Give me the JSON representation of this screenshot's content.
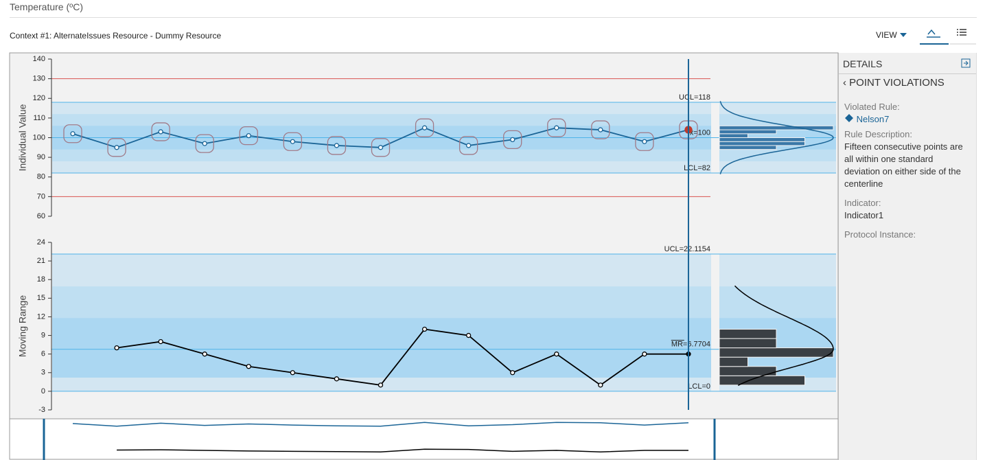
{
  "header": {
    "title": "Temperature (ºC)",
    "context": "Context #1: AlternateIssues Resource - Dummy Resource"
  },
  "toolbar": {
    "view": "VIEW"
  },
  "details": {
    "title": "DETAILS",
    "section": "POINT VIOLATIONS",
    "violated_rule_label": "Violated Rule:",
    "violated_rule": "Nelson7",
    "rule_description_label": "Rule Description:",
    "rule_description": "Fifteen consecutive points are all within one standard deviation on either side of the centerline",
    "indicator_label": "Indicator:",
    "indicator": "Indicator1",
    "protocol_instance_label": "Protocol Instance:"
  },
  "chart_data": [
    {
      "type": "line",
      "y_label": "Individual Value",
      "color": "#1a6496",
      "hist_color": "#3a78a8",
      "values": [
        102,
        95,
        103,
        97,
        101,
        98,
        96,
        95,
        105,
        96,
        99,
        105,
        104,
        98,
        104
      ],
      "ylim": [
        60,
        140
      ],
      "yticks": [
        60,
        70,
        80,
        90,
        100,
        110,
        120,
        130,
        140
      ],
      "control_limits": [
        {
          "value": 118,
          "label": "UCL=118"
        },
        {
          "value": 100,
          "label": "x̄=100"
        },
        {
          "value": 82,
          "label": "LCL=82"
        }
      ],
      "spec_limits": [
        70,
        130
      ],
      "zones": [
        [
          82,
          118
        ],
        [
          88,
          112
        ],
        [
          94,
          106
        ]
      ],
      "highlight_points": true,
      "violation_point": 14,
      "histogram": {
        "bins": [
          94,
          96,
          98,
          100,
          102,
          104,
          106
        ],
        "counts": [
          2,
          3,
          3,
          1,
          2,
          4
        ]
      }
    },
    {
      "type": "line",
      "y_label": "Moving Range",
      "color": "#000000",
      "hist_color": "#3a3f44",
      "values": [
        null,
        7,
        8,
        6,
        4,
        3,
        2,
        1,
        10,
        9,
        3,
        6,
        1,
        6,
        6
      ],
      "ylim": [
        -3,
        24
      ],
      "yticks": [
        -3,
        0,
        3,
        6,
        9,
        12,
        15,
        18,
        21,
        24
      ],
      "control_limits": [
        {
          "value": 22.1154,
          "label": "UCL=22.1154"
        },
        {
          "value": 6.7704,
          "label": "MR=6.7704"
        },
        {
          "value": 0,
          "label": "LCL=0"
        }
      ],
      "zones": [
        [
          0,
          22.1154
        ],
        [
          2.2,
          16.9
        ],
        [
          2.2,
          11.8
        ]
      ],
      "highlight_points": false,
      "histogram": {
        "bins": [
          1,
          2.5,
          4,
          5.5,
          7,
          8.5,
          10
        ],
        "counts": [
          3,
          2,
          1,
          4,
          2,
          2
        ]
      }
    }
  ]
}
